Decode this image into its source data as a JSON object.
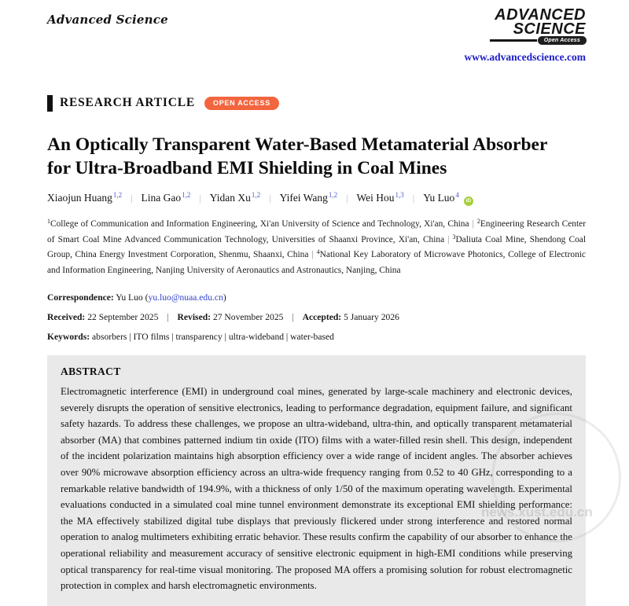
{
  "header": {
    "journal_name": "Advanced Science",
    "logo_line1": "ADVANCED",
    "logo_line2": "SCIENCE",
    "logo_badge": "Open Access",
    "website": "www.advancedscience.com"
  },
  "banner": {
    "article_type": "RESEARCH ARTICLE",
    "access_badge": "OPEN ACCESS"
  },
  "title": "An Optically Transparent Water-Based Metamaterial Absorber for Ultra-Broadband EMI Shielding in Coal Mines",
  "separators": {
    "author": "|",
    "affiliation": "|",
    "meta": "|"
  },
  "authors": [
    {
      "name": "Xiaojun Huang",
      "sup": "1,2"
    },
    {
      "name": "Lina Gao",
      "sup": "1,2"
    },
    {
      "name": "Yidan Xu",
      "sup": "1,2"
    },
    {
      "name": "Yifei Wang",
      "sup": "1,2"
    },
    {
      "name": "Wei Hou",
      "sup": "1,3"
    },
    {
      "name": "Yu Luo",
      "sup": "4"
    }
  ],
  "orcid_label": "iD",
  "affiliations": [
    {
      "sup": "1",
      "text": "College of Communication and Information Engineering, Xi'an University of Science and Technology, Xi'an, China"
    },
    {
      "sup": "2",
      "text": "Engineering Research Center of Smart Coal Mine Advanced Communication Technology, Universities of Shaanxi Province, Xi'an, China"
    },
    {
      "sup": "3",
      "text": "Daliuta Coal Mine, Shendong Coal Group, China Energy Investment Corporation, Shenmu, Shaanxi, China"
    },
    {
      "sup": "4",
      "text": "National Key Laboratory of Microwave Photonics, College of Electronic and Information Engineering, Nanjing University of Aeronautics and Astronautics, Nanjing, China"
    }
  ],
  "correspondence": {
    "label": "Correspondence:",
    "name": "Yu Luo",
    "paren_open": "(",
    "email": "yu.luo@nuaa.edu.cn",
    "paren_close": ")"
  },
  "dates": [
    {
      "label": "Received:",
      "value": "22 September 2025"
    },
    {
      "label": "Revised:",
      "value": "27 November 2025"
    },
    {
      "label": "Accepted:",
      "value": "5 January 2026"
    }
  ],
  "keywords": {
    "label": "Keywords:",
    "value": "absorbers | ITO films | transparency | ultra-wideband | water-based"
  },
  "abstract": {
    "heading": "ABSTRACT",
    "text": "Electromagnetic interference (EMI) in underground coal mines, generated by large-scale machinery and electronic devices, severely disrupts the operation of sensitive electronics, leading to performance degradation, equipment failure, and significant safety hazards. To address these challenges, we propose an ultra-wideband, ultra-thin, and optically transparent metamaterial absorber (MA) that combines patterned indium tin oxide (ITO) films with a water-filled resin shell. This design, independent of the incident polarization maintains high absorption efficiency over a wide range of incident angles. The absorber achieves over 90% microwave absorption efficiency across an ultra-wide frequency ranging from 0.52 to 40 GHz, corresponding to a remarkable relative bandwidth of 194.9%, with a thickness of only 1/50 of the maximum operating wavelength. Experimental evaluations conducted in a simulated coal mine tunnel environment demonstrate its exceptional EMI shielding performance: the MA effectively stabilized digital tube displays that previously flickered under strong interference and restored normal operation to analog multimeters exhibiting erratic behavior. These results confirm the capability of our absorber to enhance the operational reliability and measurement accuracy of sensitive electronic equipment in high-EMI conditions while preserving optical transparency for real-time visual monitoring. The proposed MA offers a promising solution for robust electromagnetic protection in complex and harsh electromagnetic environments."
  },
  "watermark": {
    "text": "news.xust.edu.cn"
  },
  "colors": {
    "accent_orange": "#f2653e",
    "link_blue": "#1d1dc8",
    "author_sup_blue": "#4a5cd0",
    "orcid_green": "#a6ce39",
    "abstract_bg": "#e9e9e9"
  }
}
